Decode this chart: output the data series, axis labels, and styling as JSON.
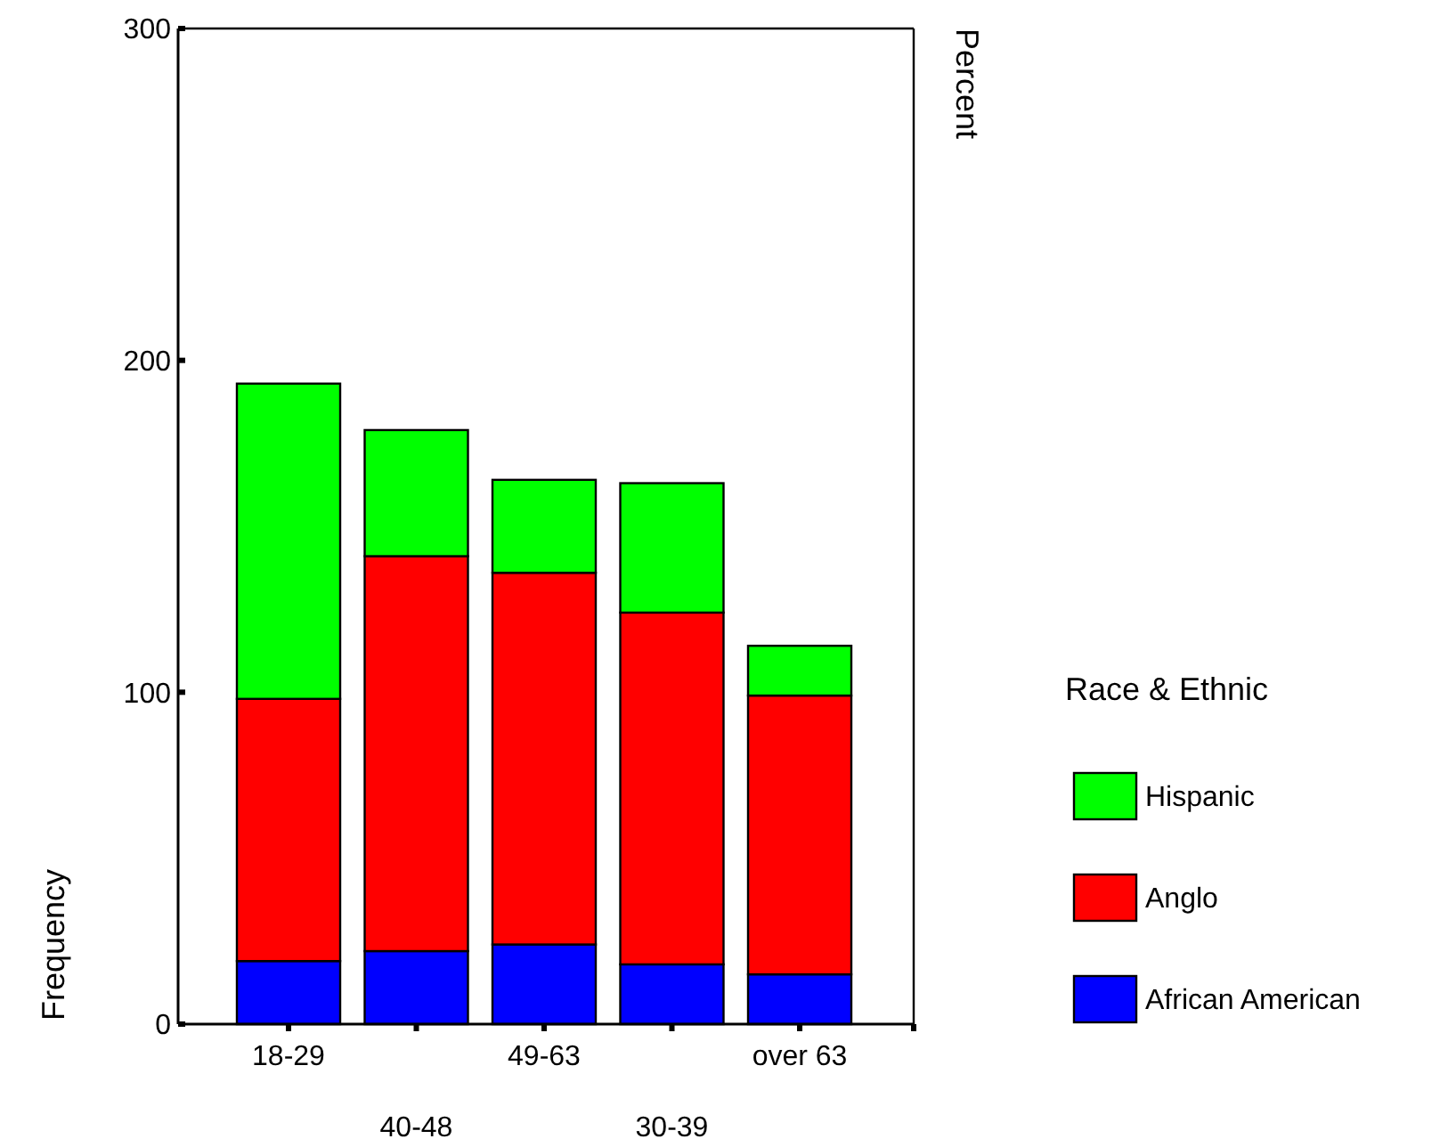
{
  "chart_data": {
    "type": "bar",
    "stacked": true,
    "categories": [
      "18-29",
      "40-48",
      "49-63",
      "30-39",
      "over 63"
    ],
    "series": [
      {
        "name": "African American",
        "color": "#0000ff",
        "values": [
          19,
          22,
          24,
          18,
          15
        ]
      },
      {
        "name": "Anglo",
        "color": "#ff0000",
        "values": [
          79,
          119,
          112,
          106,
          84
        ]
      },
      {
        "name": "Hispanic",
        "color": "#00ff00",
        "values": [
          95,
          38,
          28,
          39,
          15
        ]
      }
    ],
    "ylim": [
      0,
      300
    ],
    "yticks": [
      0,
      100,
      200,
      300
    ],
    "ylabel": "Frequency",
    "y2label": "Percent",
    "legend_title": "Race & Ethnic",
    "legend": "right",
    "grid": false
  }
}
